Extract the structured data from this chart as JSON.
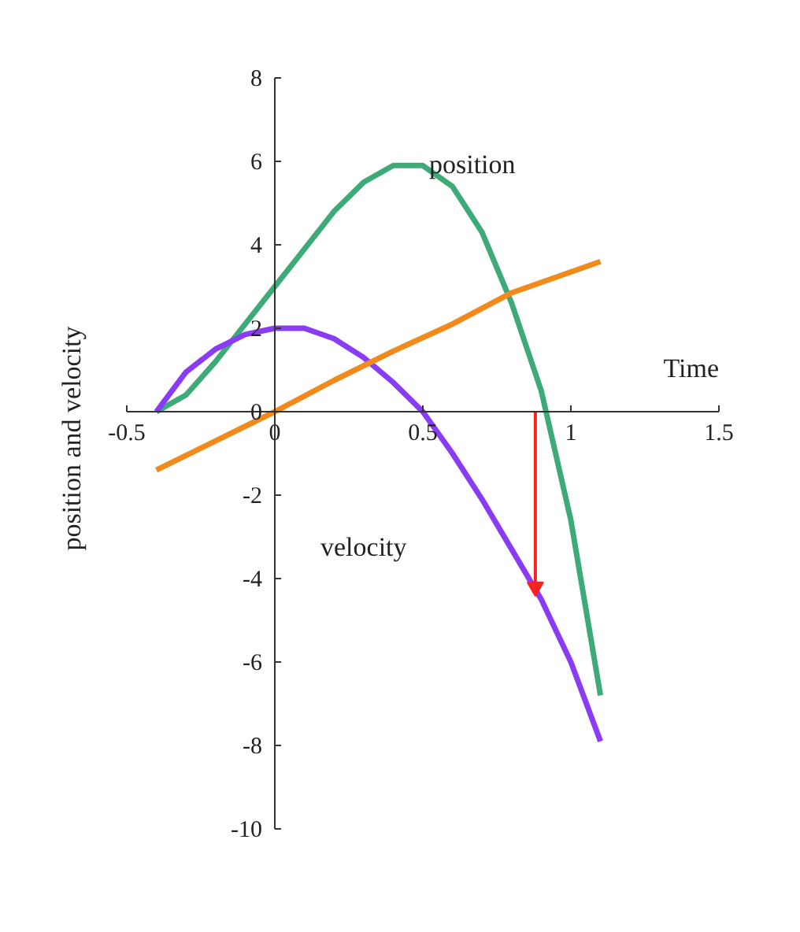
{
  "chart_data": {
    "type": "line",
    "xlabel": "Time",
    "ylabel": "position and velocity",
    "xlim": [
      -0.5,
      1.5
    ],
    "ylim": [
      -10,
      8
    ],
    "xticks": [
      -0.5,
      0,
      0.5,
      1,
      1.5
    ],
    "yticks": [
      -10,
      -8,
      -6,
      -4,
      -2,
      0,
      2,
      4,
      6,
      8
    ],
    "grid": false,
    "series": [
      {
        "color": "#3daa78",
        "x": [
          -0.4,
          -0.3,
          -0.2,
          -0.1,
          0,
          0.1,
          0.2,
          0.3,
          0.4,
          0.5,
          0.6,
          0.7,
          0.8,
          0.9,
          1.0,
          1.1
        ],
        "values": [
          0,
          0.4,
          1.2,
          2.1,
          3.0,
          3.9,
          4.8,
          5.5,
          5.9,
          5.9,
          5.4,
          4.3,
          2.6,
          0.5,
          -2.6,
          -6.8
        ]
      },
      {
        "color": "#8a3cf5",
        "x": [
          -0.4,
          -0.3,
          -0.2,
          -0.1,
          0,
          0.1,
          0.2,
          0.3,
          0.4,
          0.5,
          0.6,
          0.7,
          0.8,
          0.9,
          1.0,
          1.1
        ],
        "values": [
          0,
          0.95,
          1.5,
          1.85,
          2.0,
          2.0,
          1.75,
          1.3,
          0.7,
          0,
          -1.0,
          -2.1,
          -3.3,
          -4.5,
          -6.0,
          -7.9
        ]
      },
      {
        "color": "#f08a1c",
        "x": [
          -0.4,
          -0.2,
          0,
          0.2,
          0.4,
          0.6,
          0.8,
          1.0,
          1.1
        ],
        "values": [
          -1.4,
          -0.7,
          0,
          0.75,
          1.45,
          2.1,
          2.85,
          3.35,
          3.6
        ]
      },
      {
        "color": "#ff2020",
        "x": [
          0.88,
          0.88
        ],
        "values": [
          0,
          -4.2
        ],
        "marker": "triangle"
      }
    ],
    "annotations": [
      "position",
      "velocity"
    ]
  }
}
